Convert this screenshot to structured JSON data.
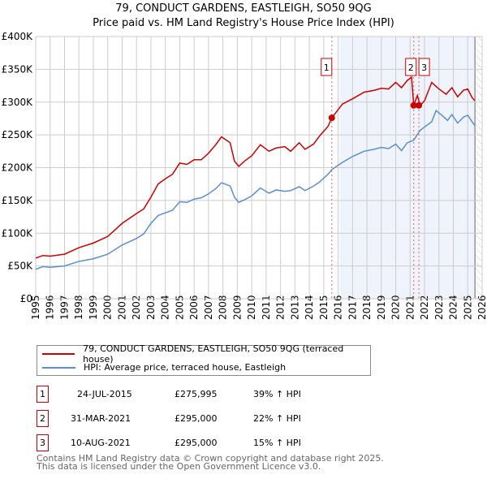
{
  "title": "79, CONDUCT GARDENS, EASTLEIGH, SO50 9QG",
  "subtitle": "Price paid vs. HM Land Registry's House Price Index (HPI)",
  "chart_data": {
    "type": "line",
    "title": "79, CONDUCT GARDENS, EASTLEIGH, SO50 9QG",
    "subtitle": "Price paid vs. HM Land Registry's House Price Index (HPI)",
    "xlim": [
      1995,
      2026
    ],
    "ylim": [
      0,
      400000
    ],
    "x_ticks": [
      "1995",
      "1996",
      "1997",
      "1998",
      "1999",
      "2000",
      "2001",
      "2002",
      "2003",
      "2004",
      "2005",
      "2006",
      "2007",
      "2008",
      "2009",
      "2010",
      "2011",
      "2012",
      "2013",
      "2014",
      "2015",
      "2016",
      "2017",
      "2018",
      "2019",
      "2020",
      "2021",
      "2022",
      "2023",
      "2024",
      "2025",
      "2026"
    ],
    "y_ticks": [
      {
        "v": 0,
        "label": "£0"
      },
      {
        "v": 50000,
        "label": "£50K"
      },
      {
        "v": 100000,
        "label": "£100K"
      },
      {
        "v": 150000,
        "label": "£150K"
      },
      {
        "v": 200000,
        "label": "£200K"
      },
      {
        "v": 250000,
        "label": "£250K"
      },
      {
        "v": 300000,
        "label": "£300K"
      },
      {
        "v": 350000,
        "label": "£350K"
      },
      {
        "v": 400000,
        "label": "£400K"
      }
    ],
    "grid": true,
    "shaded_range": [
      2016.1,
      2025.5
    ],
    "hatched_from": 2025.5,
    "series": [
      {
        "name": "79, CONDUCT GARDENS, EASTLEIGH, SO50 9QG (terraced house)",
        "color": "#cc0000",
        "x": [
          1995,
          1995.5,
          1996,
          1997,
          1998,
          1999,
          2000,
          2001,
          2002,
          2002.5,
          2003,
          2003.5,
          2004,
          2004.5,
          2005,
          2005.5,
          2006,
          2006.5,
          2007,
          2007.5,
          2007.9,
          2008.5,
          2008.8,
          2009.1,
          2009.5,
          2010,
          2010.6,
          2011.2,
          2011.7,
          2012.3,
          2012.7,
          2013.3,
          2013.7,
          2014.3,
          2014.7,
          2015.3,
          2015.56,
          2016.3,
          2017,
          2017.8,
          2018.5,
          2019,
          2019.5,
          2020,
          2020.4,
          2020.8,
          2021.1,
          2021.25,
          2021.5,
          2021.7,
          2022,
          2022.5,
          2023,
          2023.5,
          2023.9,
          2024.3,
          2024.7,
          2025,
          2025.3,
          2025.5
        ],
        "y": [
          62,
          66,
          65,
          68,
          78,
          85,
          95,
          115,
          130,
          137,
          155,
          175,
          183,
          190,
          207,
          205,
          212,
          212,
          222,
          235,
          247,
          238,
          210,
          202,
          210,
          218,
          235,
          225,
          230,
          232,
          225,
          238,
          228,
          236,
          248,
          263,
          276,
          297,
          305,
          315,
          318,
          321,
          320,
          330,
          322,
          333,
          338,
          295,
          310,
          295,
          302,
          330,
          320,
          312,
          322,
          308,
          318,
          320,
          307,
          302
        ]
      },
      {
        "name": "HPI: Average price, terraced house, Eastleigh",
        "color": "#5b8fd0",
        "x": [
          1995,
          1995.5,
          1996,
          1997,
          1998,
          1999,
          2000,
          2001,
          2002,
          2002.5,
          2003,
          2003.5,
          2004,
          2004.5,
          2005,
          2005.5,
          2006,
          2006.5,
          2007,
          2007.5,
          2007.9,
          2008.5,
          2008.8,
          2009.1,
          2009.5,
          2010,
          2010.6,
          2011.2,
          2011.7,
          2012.3,
          2012.7,
          2013.3,
          2013.7,
          2014.3,
          2014.7,
          2015.3,
          2015.56,
          2016.3,
          2017,
          2017.8,
          2018.5,
          2019,
          2019.5,
          2020,
          2020.4,
          2020.8,
          2021.25,
          2021.7,
          2022,
          2022.5,
          2022.8,
          2023.2,
          2023.6,
          2023.9,
          2024.3,
          2024.7,
          2025,
          2025.3,
          2025.5
        ],
        "y": [
          45,
          49,
          48,
          50,
          57,
          61,
          68,
          82,
          92,
          99,
          115,
          127,
          131,
          135,
          148,
          147,
          152,
          154,
          160,
          168,
          177,
          172,
          155,
          147,
          151,
          157,
          169,
          161,
          166,
          164,
          165,
          171,
          165,
          172,
          178,
          190,
          197,
          208,
          217,
          225,
          228,
          231,
          229,
          236,
          226,
          238,
          242,
          257,
          262,
          270,
          287,
          280,
          272,
          281,
          268,
          277,
          280,
          270,
          264
        ]
      }
    ],
    "y_unit_multiplier": 1000,
    "sales": [
      {
        "num": "1",
        "x": 2015.56,
        "date": "24-JUL-2015",
        "price": "£275,995",
        "value": 275995,
        "hpi": "39% ↑ HPI"
      },
      {
        "num": "2",
        "x": 2021.25,
        "date": "31-MAR-2021",
        "price": "£295,000",
        "value": 295000,
        "hpi": "22% ↑ HPI"
      },
      {
        "num": "3",
        "x": 2021.61,
        "date": "10-AUG-2021",
        "price": "£295,000",
        "value": 295000,
        "hpi": "15% ↑ HPI"
      }
    ]
  },
  "legend": {
    "red": "79, CONDUCT GARDENS, EASTLEIGH, SO50 9QG (terraced house)",
    "blue": "HPI: Average price, terraced house, Eastleigh"
  },
  "footer": {
    "line1": "Contains HM Land Registry data © Crown copyright and database right 2025.",
    "line2": "This data is licensed under the Open Government Licence v3.0."
  }
}
